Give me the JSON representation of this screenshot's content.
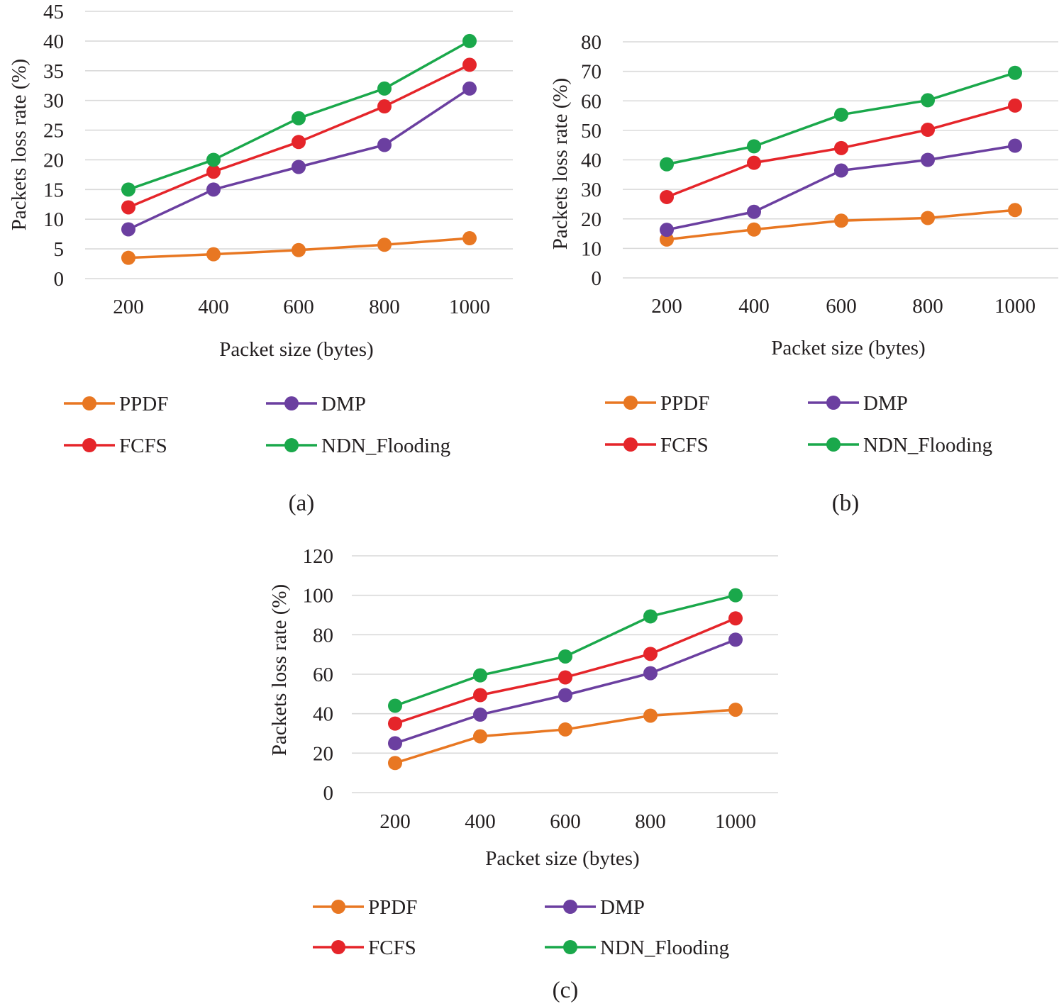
{
  "figure": {
    "series_colors": {
      "PPDF": "#E87722",
      "DMP": "#6B3FA0",
      "FCFS": "#E5252A",
      "NDN_Flooding": "#1AA84B"
    },
    "gridline_color": "#d9d9d9"
  },
  "chart_data": [
    {
      "panel": "(a)",
      "type": "line",
      "title": "",
      "xlabel": "Packet size (bytes)",
      "ylabel": "Packets loss rate (%)",
      "categories": [
        "200",
        "400",
        "600",
        "800",
        "1000"
      ],
      "ylim": [
        0,
        45
      ],
      "yticks": [
        0,
        5,
        10,
        15,
        20,
        25,
        30,
        35,
        40,
        45
      ],
      "grid": true,
      "legend": "bottom",
      "series": [
        {
          "name": "PPDF",
          "values": [
            3.5,
            4.1,
            4.8,
            5.7,
            6.8
          ]
        },
        {
          "name": "DMP",
          "values": [
            8.3,
            15.0,
            18.8,
            22.5,
            32.0
          ]
        },
        {
          "name": "FCFS",
          "values": [
            12.0,
            18.0,
            23.0,
            29.0,
            36.0
          ]
        },
        {
          "name": "NDN_Flooding",
          "values": [
            15.0,
            20.0,
            27.0,
            32.0,
            40.0
          ]
        }
      ]
    },
    {
      "panel": "(b)",
      "type": "line",
      "title": "",
      "xlabel": "Packet size (bytes)",
      "ylabel": "Packets loss rate (%)",
      "categories": [
        "200",
        "400",
        "600",
        "800",
        "1000"
      ],
      "ylim": [
        0,
        80
      ],
      "yticks": [
        0,
        10,
        20,
        30,
        40,
        50,
        60,
        70,
        80
      ],
      "grid": true,
      "legend": "bottom",
      "series": [
        {
          "name": "PPDF",
          "values": [
            13.0,
            16.4,
            19.4,
            20.3,
            23.0
          ]
        },
        {
          "name": "DMP",
          "values": [
            16.3,
            22.4,
            36.4,
            40.0,
            44.8
          ]
        },
        {
          "name": "FCFS",
          "values": [
            27.4,
            39.0,
            44.0,
            50.2,
            58.4
          ]
        },
        {
          "name": "NDN_Flooding",
          "values": [
            38.5,
            44.6,
            55.3,
            60.2,
            69.5
          ]
        }
      ]
    },
    {
      "panel": "(c)",
      "type": "line",
      "title": "",
      "xlabel": "Packet size (bytes)",
      "ylabel": "Packets loss rate (%)",
      "categories": [
        "200",
        "400",
        "600",
        "800",
        "1000"
      ],
      "ylim": [
        0,
        120
      ],
      "yticks": [
        0,
        20,
        40,
        60,
        80,
        100,
        120
      ],
      "grid": true,
      "legend": "bottom",
      "series": [
        {
          "name": "PPDF",
          "values": [
            15.0,
            28.5,
            32.0,
            39.0,
            42.0
          ]
        },
        {
          "name": "DMP",
          "values": [
            25.0,
            39.5,
            49.4,
            60.5,
            77.5
          ]
        },
        {
          "name": "FCFS",
          "values": [
            35.0,
            49.4,
            58.4,
            70.3,
            88.3
          ]
        },
        {
          "name": "NDN_Flooding",
          "values": [
            44.0,
            59.4,
            69.0,
            89.3,
            100.0
          ]
        }
      ]
    }
  ]
}
